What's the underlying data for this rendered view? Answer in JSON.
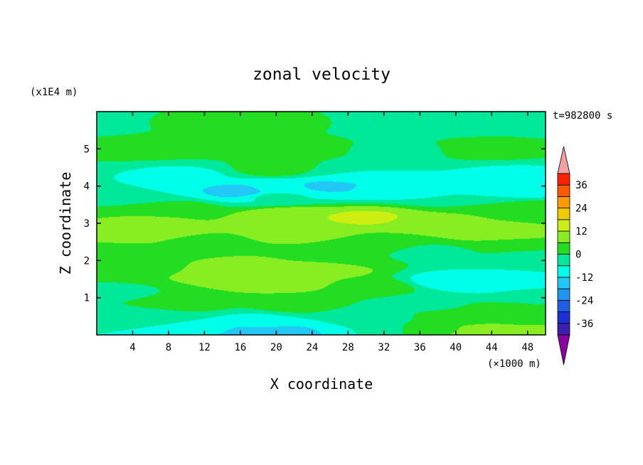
{
  "chart_data": {
    "type": "heatmap",
    "title": "zonal velocity",
    "xlabel": "X coordinate",
    "ylabel": "Z coordinate",
    "x_unit": "(×1000 m)",
    "y_unit": "(x1E4 m)",
    "time_label": "t=982800 s",
    "xlim": [
      0,
      50
    ],
    "ylim": [
      0,
      6
    ],
    "x_ticks": [
      4,
      8,
      12,
      16,
      20,
      24,
      28,
      32,
      36,
      40,
      44,
      48
    ],
    "y_ticks": [
      1,
      2,
      3,
      4,
      5
    ],
    "colorbar": {
      "levels": [
        -42,
        -36,
        -30,
        -24,
        -18,
        -12,
        -6,
        0,
        6,
        12,
        18,
        24,
        30,
        36,
        42
      ],
      "colors": [
        "#4b0082",
        "#3a1fb0",
        "#1f2fd6",
        "#1f5fe8",
        "#1f95f0",
        "#22c8f5",
        "#00ffe8",
        "#00e89a",
        "#22dd22",
        "#88ee22",
        "#ccee11",
        "#eecc00",
        "#ff9900",
        "#ff5a00",
        "#ff2200",
        "#ee1111"
      ],
      "under_color": "#8b00a0",
      "over_color": "#f2a0a0",
      "tick_labels": [
        "36",
        "24",
        "12",
        "0",
        "-12",
        "-24",
        "-36"
      ],
      "tick_values": [
        36,
        24,
        12,
        0,
        -12,
        -24,
        -36
      ],
      "extend": "both"
    },
    "field": [
      {
        "x": 0,
        "z": 5.7,
        "u": -4
      },
      {
        "x": 10,
        "z": 5.7,
        "u": 1
      },
      {
        "x": 22,
        "z": 5.7,
        "u": 1
      },
      {
        "x": 32,
        "z": 5.7,
        "u": -4
      },
      {
        "x": 42,
        "z": 5.7,
        "u": -3
      },
      {
        "x": 50,
        "z": 5.7,
        "u": -3
      },
      {
        "x": 6,
        "z": 5.05,
        "u": 4
      },
      {
        "x": 20,
        "z": 5.0,
        "u": 5
      },
      {
        "x": 34,
        "z": 4.95,
        "u": -1
      },
      {
        "x": 44,
        "z": 5.0,
        "u": 3
      },
      {
        "x": 20,
        "z": 4.45,
        "u": 3
      },
      {
        "x": 10,
        "z": 4.3,
        "u": -7
      },
      {
        "x": 28,
        "z": 4.3,
        "u": -6
      },
      {
        "x": 46,
        "z": 4.3,
        "u": -7
      },
      {
        "x": 20,
        "z": 3.95,
        "u": -11
      },
      {
        "x": 32,
        "z": 3.95,
        "u": -11
      },
      {
        "x": 48,
        "z": 3.95,
        "u": -10
      },
      {
        "x": 16,
        "z": 3.85,
        "u": -14
      },
      {
        "x": 26,
        "z": 4.0,
        "u": -13
      },
      {
        "x": 5,
        "z": 3.75,
        "u": -6
      },
      {
        "x": 20,
        "z": 3.72,
        "u": -5
      },
      {
        "x": 40,
        "z": 3.72,
        "u": -6
      },
      {
        "x": 8,
        "z": 3.4,
        "u": 4
      },
      {
        "x": 22,
        "z": 3.2,
        "u": 12
      },
      {
        "x": 30,
        "z": 3.15,
        "u": 13
      },
      {
        "x": 44,
        "z": 3.25,
        "u": 6
      },
      {
        "x": 49,
        "z": 3.35,
        "u": 3
      },
      {
        "x": 6,
        "z": 3.0,
        "u": 7
      },
      {
        "x": 38,
        "z": 3.0,
        "u": 8
      },
      {
        "x": 5,
        "z": 2.65,
        "u": 10
      },
      {
        "x": 24,
        "z": 2.72,
        "u": 8
      },
      {
        "x": 44,
        "z": 2.75,
        "u": 9
      },
      {
        "x": 10,
        "z": 2.45,
        "u": 4
      },
      {
        "x": 30,
        "z": 2.45,
        "u": 3
      },
      {
        "x": 46,
        "z": 2.4,
        "u": 5
      },
      {
        "x": 4,
        "z": 2.25,
        "u": 1
      },
      {
        "x": 30,
        "z": 2.1,
        "u": 0
      },
      {
        "x": 38,
        "z": 2.2,
        "u": -2
      },
      {
        "x": 48,
        "z": 2.1,
        "u": -3
      },
      {
        "x": 6,
        "z": 1.8,
        "u": 4
      },
      {
        "x": 14,
        "z": 1.7,
        "u": 11
      },
      {
        "x": 20,
        "z": 1.45,
        "u": 12
      },
      {
        "x": 26,
        "z": 1.75,
        "u": 8
      },
      {
        "x": 31,
        "z": 1.3,
        "u": 4
      },
      {
        "x": 2,
        "z": 1.15,
        "u": -1
      },
      {
        "x": 39,
        "z": 1.45,
        "u": -9
      },
      {
        "x": 44,
        "z": 1.4,
        "u": -11
      },
      {
        "x": 48,
        "z": 1.05,
        "u": -5
      },
      {
        "x": 10,
        "z": 0.85,
        "u": 3
      },
      {
        "x": 22,
        "z": 0.8,
        "u": 3
      },
      {
        "x": 36,
        "z": 0.85,
        "u": -2
      },
      {
        "x": 46,
        "z": 0.7,
        "u": 2
      },
      {
        "x": 6,
        "z": 0.5,
        "u": -2
      },
      {
        "x": 18,
        "z": 0.4,
        "u": -7
      },
      {
        "x": 30,
        "z": 0.45,
        "u": -5
      },
      {
        "x": 40,
        "z": 0.45,
        "u": 3
      },
      {
        "x": 48,
        "z": 0.45,
        "u": 4
      },
      {
        "x": 4,
        "z": 0.2,
        "u": -6
      },
      {
        "x": 12,
        "z": 0.15,
        "u": -10
      },
      {
        "x": 17,
        "z": 0.05,
        "u": -15
      },
      {
        "x": 21,
        "z": 0.05,
        "u": -14
      },
      {
        "x": 30,
        "z": 0.15,
        "u": -6
      },
      {
        "x": 38,
        "z": 0.15,
        "u": 5
      },
      {
        "x": 43,
        "z": 0.1,
        "u": 9
      },
      {
        "x": 48,
        "z": 0.05,
        "u": 10
      },
      {
        "x": 50,
        "z": 0.2,
        "u": 6
      }
    ]
  }
}
